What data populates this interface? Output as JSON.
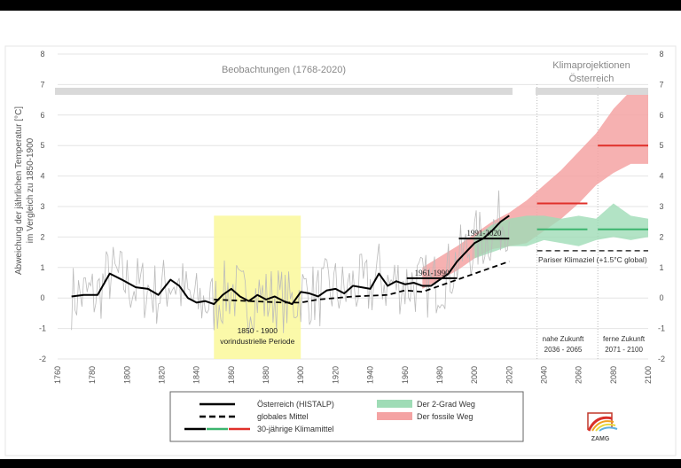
{
  "chart_data": {
    "type": "line",
    "ylabel": "Abweichung der jährlichen Temperatur [°C]",
    "ylabel2": "im Vergleich zu 1850-1900",
    "xlim": [
      1760,
      2100
    ],
    "ylim": [
      -2,
      8
    ],
    "x_ticks": [
      1760,
      1780,
      1800,
      1820,
      1840,
      1860,
      1880,
      1900,
      1920,
      1940,
      1960,
      1980,
      2000,
      2020,
      2040,
      2060,
      2080,
      2100
    ],
    "y_ticks": [
      -2,
      -1,
      0,
      1,
      2,
      3,
      4,
      5,
      6,
      7,
      8
    ],
    "grid": true,
    "colors": {
      "austria": "#000000",
      "global": "#000000",
      "annual": "#bbbbbb",
      "green_band": "#9fdcb6",
      "red_band": "#f4a3a3",
      "green_mean": "#3cb46e",
      "red_mean": "#e0302a",
      "yellow": "#fbf8a0",
      "header_bar": "#d9d9d9"
    },
    "header_observations": "Beobachtungen (1768-2020)",
    "header_projections": [
      "Klimaprojektionen",
      "Österreich"
    ],
    "preindustrial": {
      "range": [
        1850,
        1900
      ],
      "label1": "1850 - 1900",
      "label2": "vorindustrielle Periode"
    },
    "series": [
      {
        "name": "Österreich (HISTALP)",
        "style": "solid",
        "x": [
          1768,
          1775,
          1783,
          1790,
          1797,
          1805,
          1812,
          1818,
          1825,
          1830,
          1835,
          1840,
          1845,
          1850,
          1855,
          1860,
          1865,
          1870,
          1875,
          1880,
          1885,
          1890,
          1895,
          1900,
          1905,
          1910,
          1915,
          1920,
          1925,
          1930,
          1935,
          1940,
          1945,
          1950,
          1955,
          1960,
          1965,
          1970,
          1975,
          1980,
          1985,
          1990,
          1995,
          2000,
          2005,
          2010,
          2015,
          2020
        ],
        "y": [
          0.05,
          0.1,
          0.1,
          0.8,
          0.6,
          0.35,
          0.3,
          0.1,
          0.6,
          0.4,
          0.0,
          -0.15,
          -0.1,
          -0.2,
          0.1,
          0.3,
          0.05,
          -0.1,
          0.1,
          -0.05,
          0.05,
          -0.1,
          -0.2,
          0.2,
          0.15,
          0.05,
          0.25,
          0.3,
          0.15,
          0.4,
          0.35,
          0.3,
          0.8,
          0.4,
          0.55,
          0.45,
          0.5,
          0.4,
          0.4,
          0.6,
          0.8,
          1.2,
          1.5,
          1.8,
          1.95,
          2.2,
          2.5,
          2.7
        ]
      },
      {
        "name": "globales Mittel",
        "style": "dashed",
        "x": [
          1850,
          1870,
          1890,
          1900,
          1910,
          1930,
          1950,
          1960,
          1970,
          1980,
          1990,
          2000,
          2010,
          2020
        ],
        "y": [
          -0.05,
          -0.1,
          -0.15,
          -0.15,
          -0.05,
          0.05,
          0.1,
          0.25,
          0.2,
          0.4,
          0.6,
          0.8,
          1.0,
          1.2
        ]
      }
    ],
    "bands": [
      {
        "name": "Der fossile Weg",
        "x": [
          1970,
          1990,
          2000,
          2010,
          2020,
          2030,
          2040,
          2050,
          2060,
          2070,
          2080,
          2090,
          2100
        ],
        "low": [
          0.3,
          0.9,
          1.3,
          1.6,
          1.7,
          1.8,
          2.2,
          2.6,
          3.1,
          3.7,
          4.1,
          4.4,
          4.4
        ],
        "high": [
          1.0,
          1.7,
          2.1,
          2.5,
          2.8,
          3.2,
          3.7,
          4.2,
          4.8,
          5.4,
          6.2,
          6.8,
          6.8
        ]
      },
      {
        "name": "Der 2-Grad Weg",
        "x": [
          2000,
          2010,
          2020,
          2030,
          2040,
          2050,
          2060,
          2070,
          2080,
          2090,
          2100
        ],
        "low": [
          1.3,
          1.5,
          1.7,
          1.7,
          1.9,
          1.8,
          1.7,
          1.9,
          2.0,
          1.9,
          2.0
        ],
        "high": [
          2.0,
          2.4,
          2.6,
          2.7,
          2.7,
          2.6,
          2.7,
          2.6,
          3.1,
          2.7,
          2.6
        ]
      }
    ],
    "climate_means": [
      {
        "label": "1961-1990",
        "range": [
          1961,
          1990
        ],
        "value": 0.65,
        "color": "black"
      },
      {
        "label": "1991-2020",
        "range": [
          1991,
          2020
        ],
        "value": 1.95,
        "color": "black"
      },
      {
        "range": [
          2036,
          2065
        ],
        "value": 3.1,
        "color": "red"
      },
      {
        "range": [
          2071,
          2100
        ],
        "value": 5.0,
        "color": "red"
      },
      {
        "range": [
          2036,
          2065
        ],
        "value": 2.25,
        "color": "green"
      },
      {
        "range": [
          2071,
          2100
        ],
        "value": 2.25,
        "color": "green"
      }
    ],
    "paris_target": {
      "label": "Pariser Klimaziel (+1.5°C global)",
      "value": 1.55,
      "range": [
        2036,
        2100
      ]
    },
    "periods": [
      {
        "name": "nahe Zukunft",
        "range_label": "2036 - 2065",
        "start": 2036
      },
      {
        "name": "ferne Zukunft",
        "range_label": "2071 - 2100",
        "start": 2071
      }
    ],
    "legend": {
      "placement": "bottom",
      "items": [
        "Österreich (HISTALP)",
        "globales Mittel",
        "30-jährige Klimamittel",
        "Der 2-Grad Weg",
        "Der fossile Weg"
      ]
    },
    "logo": "ZAMG"
  }
}
